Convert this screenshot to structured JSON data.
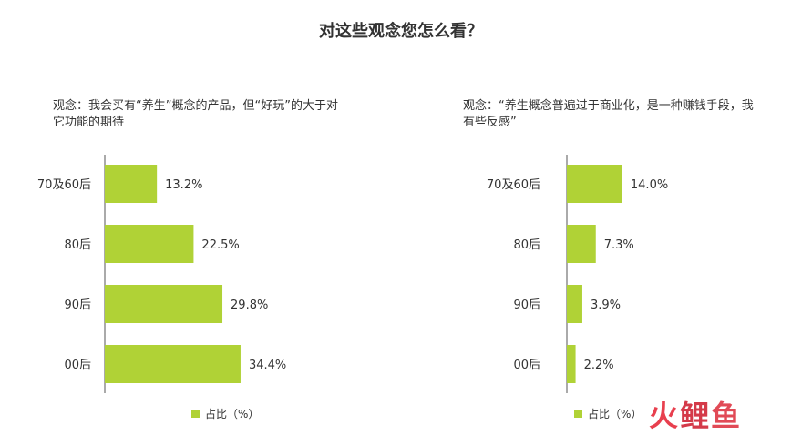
{
  "title": "对这些观念您怎么看？",
  "colors": {
    "bar": "#b0d236",
    "axis": "#555555",
    "logo": "#e83f4e"
  },
  "legend_label": "占比（%）",
  "logo_text": [
    "火",
    "鲤",
    "鱼"
  ],
  "chart_data": [
    {
      "type": "bar",
      "orientation": "horizontal",
      "title": "观念：我会买有“养生”概念的产品，但“好玩”的大于对它功能的期待",
      "categories": [
        "70及60后",
        "80后",
        "90后",
        "00后"
      ],
      "values": [
        13.2,
        22.5,
        29.8,
        34.4
      ],
      "value_labels": [
        "13.2%",
        "22.5%",
        "29.8%",
        "34.4%"
      ],
      "legend": [
        "占比（%）"
      ],
      "legend_position": "bottom"
    },
    {
      "type": "bar",
      "orientation": "horizontal",
      "title": "观念：“养生概念普遍过于商业化，是一种赚钱手段，我有些反感”",
      "categories": [
        "70及60后",
        "80后",
        "90后",
        "00后"
      ],
      "values": [
        14.0,
        7.3,
        3.9,
        2.2
      ],
      "value_labels": [
        "14.0%",
        "7.3%",
        "3.9%",
        "2.2%"
      ],
      "legend": [
        "占比（%）"
      ],
      "legend_position": "bottom"
    }
  ]
}
